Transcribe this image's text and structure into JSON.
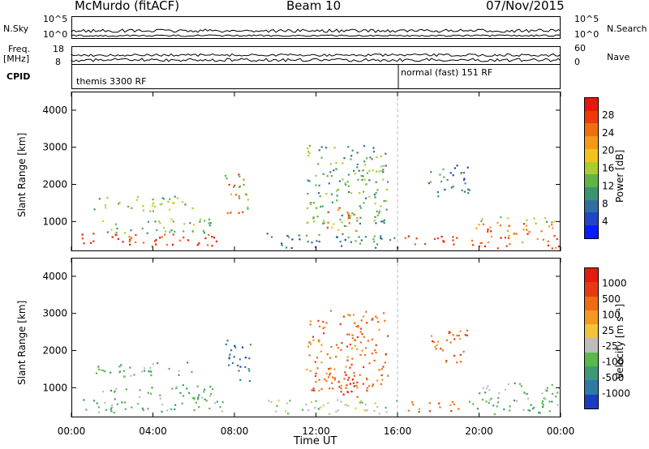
{
  "header": {
    "station": "McMurdo (fitACF)",
    "beam": "Beam 10",
    "date": "07/Nov/2015"
  },
  "top_panels": {
    "nsky_label": "N.Sky",
    "nsky_ticks": [
      "10^5",
      "10^0"
    ],
    "nsearch_label": "N.Search",
    "nsearch_ticks": [
      "10^5",
      "10^0"
    ],
    "freq_label": "Freq.",
    "freq_unit": "[MHz]",
    "freq_ticks": [
      "18",
      "8"
    ],
    "nave_label": "Nave",
    "nave_ticks": [
      "60",
      "0"
    ],
    "cpid_label": "CPID",
    "cpid_segments": [
      "themis 3300 RF",
      "normal (fast) 151 RF"
    ]
  },
  "chart_data": [
    {
      "type": "heatmap",
      "name": "power",
      "ylabel": "Slant Range [km]",
      "y_ticks": [
        "1000",
        "2000",
        "3000",
        "4000"
      ],
      "ylim": [
        200,
        4500
      ],
      "x_ticks": [
        "00:00",
        "04:00",
        "08:00",
        "12:00",
        "16:00",
        "20:00",
        "00:00"
      ],
      "xlabel": "Time UT",
      "colorbar": {
        "label": "Power [dB]",
        "ticks": [
          "4",
          "8",
          "12",
          "16",
          "20",
          "24",
          "28"
        ],
        "colors": [
          "#0a1cff",
          "#2147c8",
          "#2f6fa0",
          "#3a9470",
          "#5fb446",
          "#a9cd30",
          "#f4c21c",
          "#f49b16",
          "#f26d10",
          "#ee3a0b",
          "#e8190a"
        ]
      }
    },
    {
      "type": "heatmap",
      "name": "velocity",
      "ylabel": "Slant Range [km]",
      "y_ticks": [
        "1000",
        "2000",
        "3000",
        "4000"
      ],
      "ylim": [
        200,
        4500
      ],
      "x_ticks": [
        "00:00",
        "04:00",
        "08:00",
        "12:00",
        "16:00",
        "20:00",
        "00:00"
      ],
      "xlabel": "Time UT",
      "colorbar": {
        "label": "Velocity [m s⁻¹]",
        "ticks": [
          "1000",
          "500",
          "100",
          "25",
          "-25",
          "-100",
          "-500",
          "-1000"
        ],
        "colors": [
          "#1a3dc0",
          "#2f79a6",
          "#3e9a76",
          "#58b84a",
          "#bdbdbd",
          "#f2c43a",
          "#f29922",
          "#ef6c14",
          "#e83a10",
          "#e51a10"
        ]
      }
    }
  ]
}
